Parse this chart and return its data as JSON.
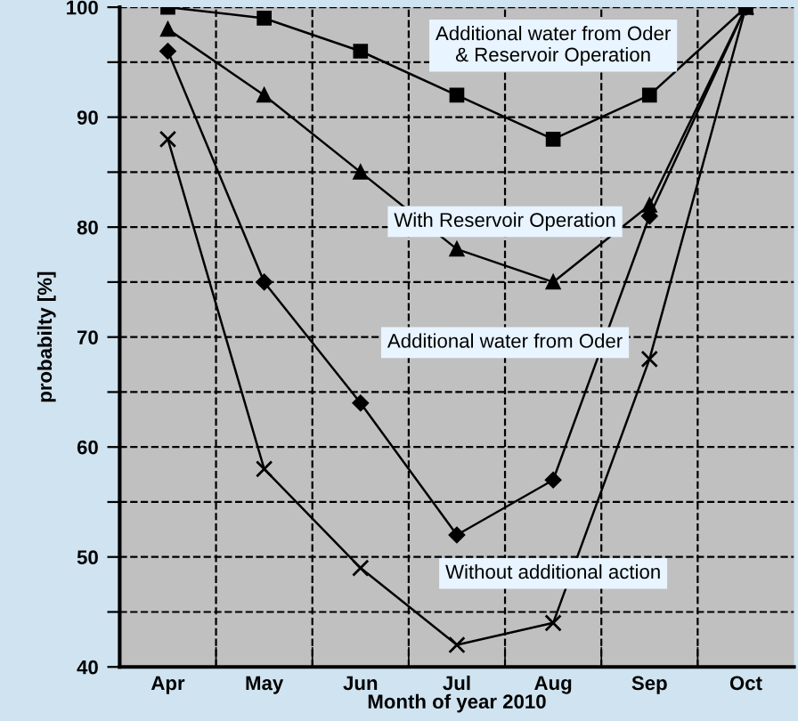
{
  "chart_data": {
    "type": "line",
    "xlabel": "Month of year 2010",
    "ylabel": "probabilty [%]",
    "categories": [
      "Apr",
      "May",
      "Jun",
      "Jul",
      "Aug",
      "Sep",
      "Oct"
    ],
    "series": [
      {
        "name": "Additional water from Oder\n& Reservoir Operation",
        "color": "#000000",
        "marker": "square",
        "values": [
          100,
          99,
          96,
          92,
          88,
          92,
          100
        ]
      },
      {
        "name": "With Reservoir Operation",
        "color": "#000000",
        "marker": "triangle",
        "values": [
          98,
          92,
          85,
          78,
          75,
          82,
          100
        ]
      },
      {
        "name": "Additional water from Oder",
        "color": "#000000",
        "marker": "diamond",
        "values": [
          96,
          75,
          64,
          52,
          57,
          81,
          100
        ]
      },
      {
        "name": "Without additional action",
        "color": "#000000",
        "marker": "cross",
        "values": [
          88,
          58,
          49,
          42,
          44,
          68,
          100
        ]
      }
    ],
    "ylim": [
      40,
      100
    ],
    "yticks": [
      40,
      {
        "value": 45,
        "label": null
      },
      50,
      {
        "value": 55,
        "label": null
      },
      60,
      {
        "value": 65,
        "label": null
      },
      70,
      {
        "value": 75,
        "label": null
      },
      80,
      {
        "value": 85,
        "label": null
      },
      90,
      {
        "value": 95,
        "label": null
      },
      100
    ],
    "grid": true,
    "legend": false,
    "line_style": "solid"
  }
}
